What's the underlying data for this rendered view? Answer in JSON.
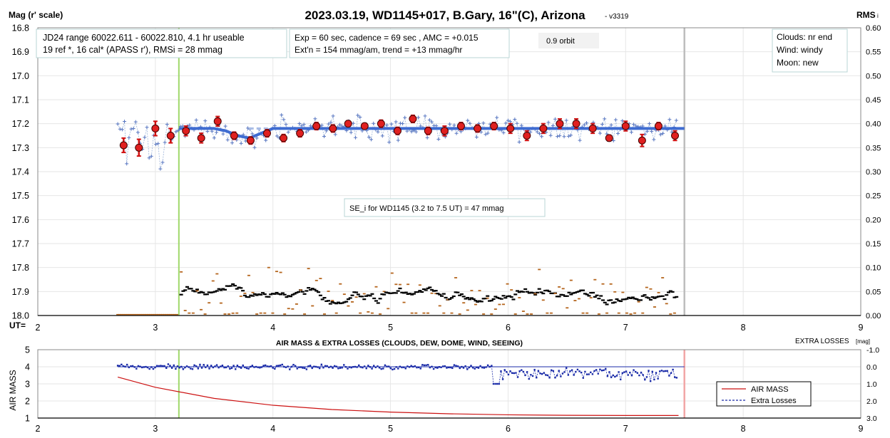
{
  "chart_data": [
    {
      "type": "scatter",
      "title": "2023.03.19, WD1145+017, B.Gary, 16\"(C), Arizona",
      "version": "- v3319",
      "ylabel": "Mag (r' scale)",
      "y2label": "RMS",
      "y2label_sub": "i",
      "xlabel": "UT=",
      "xlim": [
        2,
        9
      ],
      "ylim": [
        16.8,
        18.0
      ],
      "y2lim": [
        0.0,
        0.6
      ],
      "x_ticks": [
        2,
        3,
        4,
        5,
        6,
        7,
        8,
        9
      ],
      "y_ticks": [
        16.8,
        16.9,
        17.0,
        17.1,
        17.2,
        17.3,
        17.4,
        17.5,
        17.6,
        17.7,
        17.8,
        17.9,
        18.0
      ],
      "y2_ticks": [
        0.6,
        0.55,
        0.5,
        0.45,
        0.4,
        0.35,
        0.3,
        0.25,
        0.2,
        0.15,
        0.1,
        0.05,
        0.0
      ],
      "green_line_x": 3.2,
      "gray_line_x": 7.5,
      "annotations": {
        "jd_line1": "JD24 range 60022.611 - 60022.810, 4.1 hr useable",
        "jd_line2": "19 ref *, 16 cal*  (APASS r'), RMSi = 28 mmag",
        "exp_line1": "Exp = 60 sec, cadence = 69 sec , AMC = +0.015",
        "exp_line2": "Ext'n = 154 mmag/am, trend = +13 mmag/hr",
        "orbit": "0.9 orbit",
        "clouds": "Clouds: nr end",
        "wind": "Wind:    windy",
        "moon": "Moon:    new",
        "se": "SE_i for WD1145 (3.2 to 7.5 UT) = 47 mmag"
      },
      "series": [
        {
          "role": "binned",
          "x": [
            2.73,
            2.86,
            3.0,
            3.13,
            3.26,
            3.39,
            3.53,
            3.67,
            3.81,
            3.95,
            4.09,
            4.23,
            4.37,
            4.51,
            4.64,
            4.78,
            4.92,
            5.06,
            5.19,
            5.32,
            5.46,
            5.6,
            5.74,
            5.88,
            6.02,
            6.16,
            6.3,
            6.44,
            6.58,
            6.72,
            6.86,
            7.0,
            7.14,
            7.28,
            7.42
          ],
          "values": [
            17.29,
            17.3,
            17.22,
            17.25,
            17.23,
            17.26,
            17.19,
            17.25,
            17.27,
            17.24,
            17.26,
            17.24,
            17.21,
            17.22,
            17.2,
            17.21,
            17.2,
            17.23,
            17.18,
            17.23,
            17.23,
            17.21,
            17.22,
            17.21,
            17.22,
            17.25,
            17.22,
            17.2,
            17.2,
            17.22,
            17.26,
            17.21,
            17.27,
            17.21,
            17.25
          ],
          "errors": [
            0.03,
            0.035,
            0.03,
            0.03,
            0.02,
            0.02,
            0.02,
            0.015,
            0.015,
            0.015,
            0.015,
            0.015,
            0.015,
            0.015,
            0.012,
            0.012,
            0.015,
            0.015,
            0.015,
            0.015,
            0.02,
            0.015,
            0.015,
            0.015,
            0.02,
            0.02,
            0.02,
            0.02,
            0.02,
            0.02,
            0.012,
            0.02,
            0.025,
            0.015,
            0.02
          ]
        },
        {
          "role": "model",
          "x": [
            3.2,
            3.5,
            3.6,
            3.7,
            3.8,
            3.9,
            4.0,
            7.5
          ],
          "values": [
            17.22,
            17.22,
            17.23,
            17.25,
            17.26,
            17.24,
            17.22,
            17.22
          ]
        },
        {
          "role": "model-extension",
          "x": [
            3.8,
            4.6
          ],
          "values": [
            17.22,
            17.22
          ]
        }
      ],
      "raw_points": {
        "x_start": 2.68,
        "x_end": 7.45,
        "count": 250,
        "base": 17.22,
        "scatter": 0.045,
        "pre_scatter": 0.09
      },
      "rms_points": {
        "x_start": 3.22,
        "x_end": 7.45,
        "count": 250,
        "base": 0.04,
        "scatter": 0.015,
        "outlier_scatter": 0.06
      }
    },
    {
      "type": "line",
      "title": "AIR MASS & EXTRA LOSSES (CLOUDS, DEW, DOME, WIND, SEEING)",
      "ylabel": "AIR MASS",
      "y2label": "EXTRA LOSSES",
      "y2label_unit": "[mag]",
      "xlim": [
        2,
        9
      ],
      "ylim": [
        1,
        5
      ],
      "y2lim": [
        3.0,
        -1.0
      ],
      "x_ticks": [
        2,
        3,
        4,
        5,
        6,
        7,
        8,
        9
      ],
      "y_ticks": [
        1,
        2,
        3,
        4,
        5
      ],
      "y2_ticks": [
        "-1.0",
        "0.0",
        "1.0",
        "2.0",
        "3.0"
      ],
      "green_line_x": 3.2,
      "pink_line_x": 7.5,
      "reference_y2": 0.0,
      "series": [
        {
          "name": "AIR MASS",
          "color": "#cc1111",
          "x": [
            2.68,
            3.0,
            3.5,
            4.0,
            4.5,
            5.0,
            5.5,
            6.0,
            6.5,
            7.0,
            7.45
          ],
          "values": [
            3.4,
            2.8,
            2.15,
            1.75,
            1.5,
            1.35,
            1.25,
            1.19,
            1.16,
            1.15,
            1.15
          ]
        },
        {
          "name": "Extra Losses",
          "color": "#1a2ba8",
          "x_start": 2.68,
          "x_end": 7.45,
          "count": 300,
          "base": 0.0,
          "noise": 0.07,
          "late_noise": 0.3,
          "late_start": 5.9,
          "dip_x": 5.9,
          "dip_value": 1.0
        }
      ]
    }
  ]
}
